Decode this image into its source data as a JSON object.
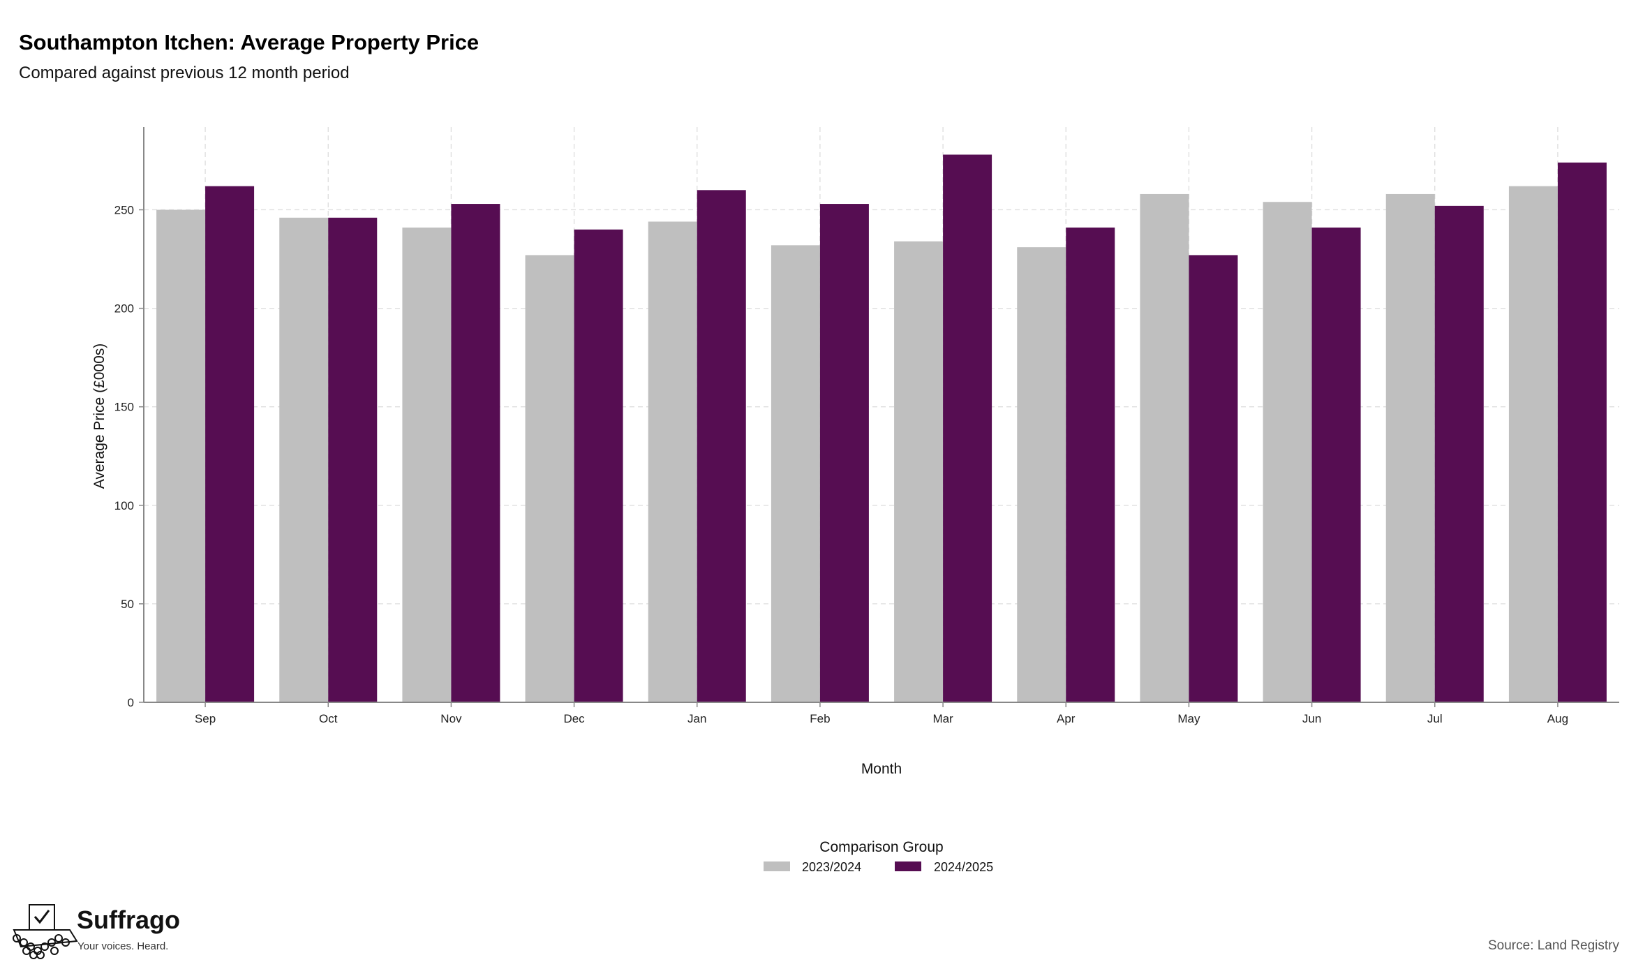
{
  "chart_data": {
    "type": "bar",
    "title": "Southampton Itchen: Average Property Price",
    "subtitle": "Compared against previous 12 month period",
    "xlabel": "Month",
    "ylabel": "Average Price (£000s)",
    "ylim": [
      0,
      292
    ],
    "yticks": [
      0,
      50,
      100,
      150,
      200,
      250
    ],
    "grid": true,
    "legend_position": "bottom-center",
    "legend_title": "Comparison Group",
    "categories": [
      "Sep",
      "Oct",
      "Nov",
      "Dec",
      "Jan",
      "Feb",
      "Mar",
      "Apr",
      "May",
      "Jun",
      "Jul",
      "Aug"
    ],
    "series": [
      {
        "name": "2023/2024",
        "color": "#bfbfbf",
        "values": [
          250,
          246,
          241,
          227,
          244,
          232,
          234,
          231,
          258,
          254,
          258,
          262
        ]
      },
      {
        "name": "2024/2025",
        "color": "#560d52",
        "values": [
          262,
          246,
          253,
          240,
          260,
          253,
          278,
          241,
          227,
          241,
          252,
          274
        ]
      }
    ]
  },
  "branding": {
    "name": "Suffrago",
    "tagline": "Your voices. Heard.",
    "logo_icon": "ballot-box-icon"
  },
  "source": "Source: Land Registry"
}
